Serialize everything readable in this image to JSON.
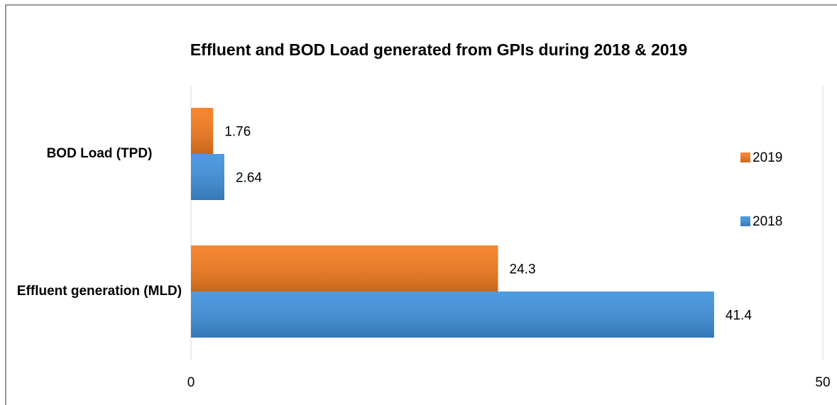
{
  "chart_data": {
    "type": "hbar",
    "title": "Effluent and  BOD Load generated from GPIs during 2018 & 2019",
    "categories": [
      "BOD Load (TPD)",
      "Effluent generation (MLD)"
    ],
    "series": [
      {
        "name": "2019",
        "color": "#f57c1f",
        "values": [
          1.76,
          24.3
        ]
      },
      {
        "name": "2018",
        "color": "#3f92dd",
        "values": [
          2.64,
          41.4
        ]
      }
    ],
    "xlim": [
      0,
      50
    ],
    "xticks": [
      0,
      50
    ],
    "grid": true,
    "legend": "right"
  }
}
